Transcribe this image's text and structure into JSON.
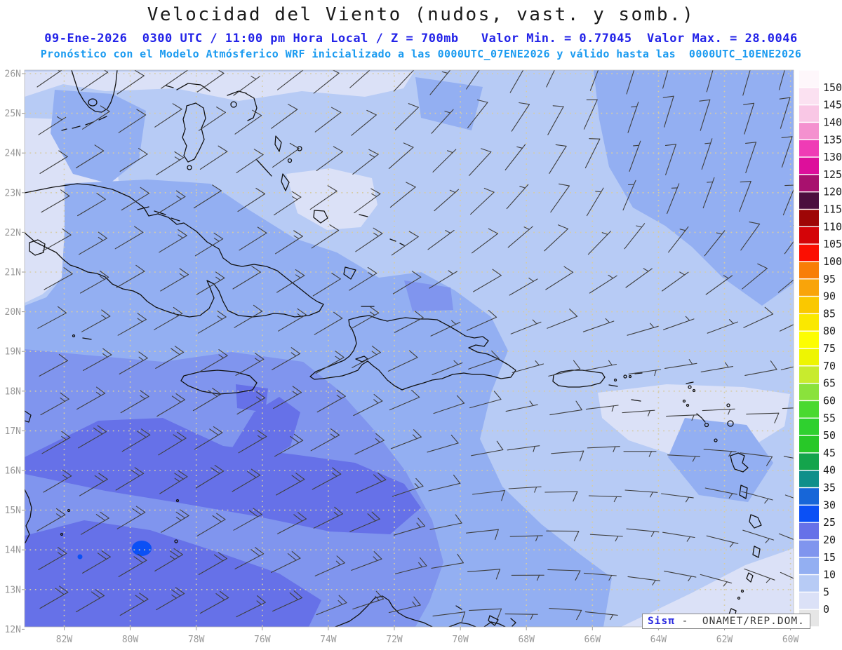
{
  "header": {
    "title": "Velocidad del Viento (nudos, vast. y somb.)",
    "title_color": "#1a1a1a",
    "subtitle_datetime": "09-Ene-2026  0300 UTC / 11:00 pm Hora Local / Z = 700mb   Valor Min. = 0.77045  Valor Max. = 28.0046",
    "subtitle_datetime_color": "#2323e8",
    "subtitle_model": "Pronóstico con el Modelo Atmósferico WRF inicializado a las 0000UTC_07ENE2026 y válido hasta las  0000UTC_10ENE2026",
    "subtitle_model_color": "#1b9bf0"
  },
  "map": {
    "lat_labels": [
      "26N",
      "25N",
      "24N",
      "23N",
      "22N",
      "21N",
      "20N",
      "19N",
      "18N",
      "17N",
      "16N",
      "15N",
      "14N",
      "13N",
      "12N"
    ],
    "lon_labels": [
      "82W",
      "80W",
      "78W",
      "76W",
      "74W",
      "72W",
      "70W",
      "68W",
      "66W",
      "64W",
      "62W",
      "60W"
    ],
    "axis_label_color": "#999999",
    "grid_color": "#d6cca6",
    "coast_color": "#111111",
    "barb_color": "#3f3f3f"
  },
  "colorbar": {
    "tick_labels": [
      "0",
      "5",
      "10",
      "15",
      "20",
      "25",
      "30",
      "35",
      "40",
      "45",
      "50",
      "55",
      "60",
      "65",
      "70",
      "75",
      "80",
      "85",
      "90",
      "95",
      "100",
      "105",
      "110",
      "115",
      "120",
      "125",
      "130",
      "135",
      "140",
      "145",
      "150"
    ],
    "cell_colors_bottom_to_top": [
      "#e6e6e6",
      "#dbe1f7",
      "#b7cbf5",
      "#93aff2",
      "#8095ee",
      "#6671e8",
      "#0b50f5",
      "#1766d8",
      "#0f8f8a",
      "#14a44c",
      "#28c828",
      "#2fd02f",
      "#4ad930",
      "#8ae23c",
      "#c8eb2e",
      "#eef502",
      "#fdfd02",
      "#fae800",
      "#fac800",
      "#f9a40a",
      "#f87e07",
      "#fb0f02",
      "#d40408",
      "#9e0606",
      "#4c0f3e",
      "#a8116e",
      "#dd0f9b",
      "#ef3cb5",
      "#f491cf",
      "#f9c7e5",
      "#fbe1f1",
      "#fef7fb"
    ],
    "label_color": "#1a1a1a"
  },
  "watermark": {
    "brand": "Sisπ",
    "brand_color": "#2929e0",
    "separator": "-",
    "org": "ONAMET/REP.DOM."
  },
  "chart_data": {
    "type": "heatmap",
    "title": "Velocidad del Viento (nudos, vast. y somb.)",
    "variable": "wind_speed_with_barbs",
    "units": "nudos",
    "pressure_level": "700mb",
    "valid_utc": "09-Ene-2026 0300 UTC",
    "valid_local": "11:00 pm Hora Local",
    "model": "WRF",
    "model_init": "0000UTC_07ENE2026",
    "model_valid_until": "0000UTC_10ENE2026",
    "value_min": 0.77045,
    "value_max": 28.0046,
    "lon_range_deg_west": [
      83.2,
      60.0
    ],
    "lat_range_deg_north": [
      12.0,
      26.1
    ],
    "shade_levels_kt": [
      0,
      5,
      10,
      15,
      20,
      25,
      30
    ],
    "colorbar_range": [
      0,
      150
    ],
    "colorbar_step": 5,
    "wind_grid": {
      "lon_fracs": [
        0,
        0.2,
        0.4,
        0.6,
        0.8,
        1
      ],
      "lat_fracs": [
        0,
        0.25,
        0.5,
        0.75,
        1
      ],
      "speed_kt": [
        [
          8,
          8,
          8,
          10,
          12,
          12
        ],
        [
          10,
          12,
          12,
          8,
          5,
          8
        ],
        [
          13,
          15,
          13,
          6,
          5,
          7
        ],
        [
          18,
          22,
          18,
          8,
          6,
          5
        ],
        [
          20,
          22,
          15,
          8,
          5,
          3
        ]
      ],
      "staff_angle_deg": [
        [
          35,
          35,
          40,
          60,
          75,
          75
        ],
        [
          30,
          32,
          35,
          45,
          70,
          70
        ],
        [
          28,
          30,
          30,
          20,
          10,
          20
        ],
        [
          30,
          32,
          28,
          5,
          -5,
          -20
        ],
        [
          30,
          30,
          20,
          0,
          -10,
          -30
        ]
      ]
    }
  }
}
